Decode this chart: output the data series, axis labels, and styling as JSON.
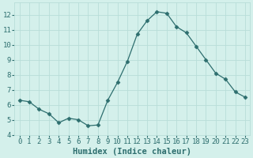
{
  "x": [
    0,
    1,
    2,
    3,
    4,
    5,
    6,
    7,
    8,
    9,
    10,
    11,
    12,
    13,
    14,
    15,
    16,
    17,
    18,
    19,
    20,
    21,
    22,
    23
  ],
  "y": [
    6.3,
    6.2,
    5.7,
    5.4,
    4.8,
    5.1,
    5.0,
    4.6,
    4.65,
    6.3,
    7.5,
    8.9,
    10.7,
    11.6,
    12.2,
    12.1,
    11.2,
    10.8,
    9.9,
    9.0,
    8.1,
    7.7,
    6.85,
    6.5
  ],
  "line_color": "#2d6e6e",
  "marker": "D",
  "marker_size": 2.5,
  "bg_color": "#d4f0eb",
  "grid_color": "#b8ddd8",
  "xlabel": "Humidex (Indice chaleur)",
  "xlim": [
    -0.5,
    23.5
  ],
  "ylim": [
    4,
    12.8
  ],
  "yticks": [
    4,
    5,
    6,
    7,
    8,
    9,
    10,
    11,
    12
  ],
  "xticks": [
    0,
    1,
    2,
    3,
    4,
    5,
    6,
    7,
    8,
    9,
    10,
    11,
    12,
    13,
    14,
    15,
    16,
    17,
    18,
    19,
    20,
    21,
    22,
    23
  ],
  "title_color": "#2d6e6e",
  "label_fontsize": 7.5,
  "tick_fontsize": 6.5
}
